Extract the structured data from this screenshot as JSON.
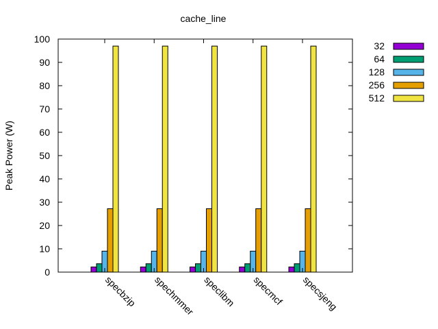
{
  "chart_data": {
    "type": "bar",
    "title": "cache_line",
    "xlabel": "",
    "ylabel": "Peak Power (W)",
    "ylim": [
      0,
      100
    ],
    "yticks": [
      0,
      10,
      20,
      30,
      40,
      50,
      60,
      70,
      80,
      90,
      100
    ],
    "grid": false,
    "legend_position": "top-right",
    "categories": [
      "specbzip",
      "spechmmer",
      "speclibm",
      "specmcf",
      "specsjeng"
    ],
    "series": [
      {
        "name": "32",
        "color": "#9400d3",
        "values": [
          2.2,
          2.2,
          2.2,
          2.2,
          2.2
        ]
      },
      {
        "name": "64",
        "color": "#009e73",
        "values": [
          3.6,
          3.6,
          3.6,
          3.6,
          3.6
        ]
      },
      {
        "name": "128",
        "color": "#56b4e9",
        "values": [
          9.0,
          9.0,
          9.0,
          9.0,
          9.0
        ]
      },
      {
        "name": "256",
        "color": "#e69f00",
        "values": [
          27.2,
          27.2,
          27.2,
          27.2,
          27.2
        ]
      },
      {
        "name": "512",
        "color": "#f0e442",
        "values": [
          97.0,
          97.0,
          97.0,
          97.0,
          97.0
        ]
      }
    ]
  }
}
